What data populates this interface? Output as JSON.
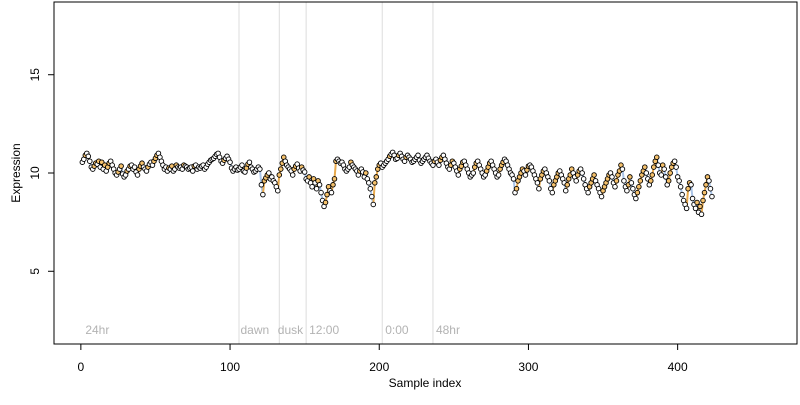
{
  "chart_data": {
    "type": "scatter",
    "xlabel": "Sample index",
    "ylabel": "Expression",
    "xlim": [
      -18,
      480
    ],
    "ylim": [
      1.3,
      18.7
    ],
    "x_ticks": [
      0,
      100,
      200,
      300,
      400
    ],
    "y_ticks": [
      5,
      10,
      15
    ],
    "grid": false,
    "legend": "none",
    "point_fill": "#ffffff",
    "point_stroke": "#000000",
    "highlight_fill": "#f5c16c",
    "segment_colors": {
      "up": "#e8a94c",
      "down": "#a9c4e8"
    },
    "vlines": {
      "x": [
        106,
        133,
        151,
        202,
        236
      ],
      "color": "#dddddd"
    },
    "annotations": [
      {
        "x": 3,
        "y": 2,
        "text": "24hr"
      },
      {
        "x": 107,
        "y": 2,
        "text": "dawn"
      },
      {
        "x": 132,
        "y": 2,
        "text": "dusk"
      },
      {
        "x": 153,
        "y": 2,
        "text": "12:00"
      },
      {
        "x": 204,
        "y": 2,
        "text": "0:00"
      },
      {
        "x": 238,
        "y": 2,
        "text": "48hr"
      }
    ],
    "series": [
      {
        "x_start": 1,
        "values": [
          10.55,
          10.7,
          10.9,
          11.0,
          10.85,
          10.6,
          10.3,
          10.2,
          10.35,
          10.5,
          10.45,
          10.6,
          10.3,
          10.55,
          10.2,
          10.4,
          10.1,
          10.3,
          10.5,
          10.6,
          10.4,
          10.2,
          10.0,
          9.9,
          10.05,
          10.2,
          10.35,
          9.95,
          9.8,
          9.9,
          10.1,
          10.2,
          10.35,
          10.4,
          10.2,
          10.3,
          10.05,
          9.9,
          10.2,
          10.35,
          10.5,
          10.3,
          10.2,
          10.1,
          10.3,
          10.45,
          10.55,
          10.4,
          10.6,
          10.75,
          10.9,
          11.0,
          10.8,
          10.6,
          10.4,
          10.2,
          10.3,
          10.1,
          10.25,
          10.2,
          10.35,
          10.1,
          10.2,
          10.4,
          10.3,
          10.25,
          10.3,
          10.2,
          10.4,
          10.35,
          10.3,
          10.2,
          10.25,
          10.3,
          10.1,
          10.35,
          10.4,
          10.2,
          10.3,
          10.25,
          10.35,
          10.4,
          10.2,
          10.3,
          10.45,
          10.55,
          10.65,
          10.7,
          10.75,
          10.85,
          10.95,
          11.0,
          10.8,
          10.6,
          10.5,
          10.65,
          10.75,
          10.85,
          10.7,
          10.55,
          10.25,
          10.1,
          10.2,
          10.3,
          10.15,
          10.2,
          10.3,
          10.4,
          10.1,
          10.05,
          10.25,
          10.45,
          10.55,
          10.3,
          10.2,
          10.05,
          10.1,
          10.2,
          10.3,
          10.2,
          9.4,
          8.9,
          9.6,
          9.75,
          9.9,
          10.0,
          9.7,
          9.8,
          9.6,
          9.5,
          9.3,
          9.1,
          9.9,
          10.2,
          10.5,
          10.8,
          10.6,
          10.4,
          10.3,
          10.2,
          10.1,
          9.9,
          10.2,
          10.35,
          10.45,
          10.25,
          10.1,
          10.3,
          10.15,
          10.05,
          9.7,
          9.6,
          9.8,
          9.5,
          9.3,
          9.7,
          9.5,
          9.2,
          9.6,
          9.4,
          9.0,
          8.6,
          8.3,
          8.5,
          8.9,
          9.3,
          9.1,
          9.0,
          9.4,
          9.7,
          10.6,
          10.7,
          10.6,
          10.5,
          10.55,
          10.4,
          10.2,
          10.1,
          10.2,
          10.3,
          10.55,
          10.4,
          10.3,
          10.2,
          10.1,
          9.9,
          10.1,
          10.2,
          10.05,
          9.8,
          10.0,
          9.7,
          9.5,
          9.2,
          8.8,
          8.4,
          9.5,
          9.8,
          10.2,
          10.4,
          10.5,
          10.3,
          10.4,
          10.5,
          10.6,
          10.7,
          10.85,
          10.95,
          11.05,
          10.9,
          10.7,
          10.75,
          10.9,
          11.0,
          10.85,
          10.7,
          10.6,
          10.8,
          10.9,
          10.8,
          10.7,
          10.55,
          10.6,
          10.7,
          10.8,
          10.9,
          10.65,
          10.5,
          10.6,
          10.7,
          10.8,
          10.9,
          10.75,
          10.6,
          10.5,
          10.4,
          10.6,
          10.7,
          10.55,
          10.4,
          10.65,
          10.8,
          10.9,
          10.7,
          10.5,
          10.3,
          10.2,
          10.4,
          10.6,
          10.5,
          10.3,
          10.1,
          9.9,
          10.2,
          10.35,
          10.55,
          10.6,
          10.4,
          10.2,
          10.0,
          9.8,
          9.9,
          10.0,
          10.3,
          10.5,
          10.6,
          10.4,
          10.2,
          10.0,
          9.8,
          9.9,
          10.1,
          10.3,
          10.5,
          10.6,
          10.4,
          10.2,
          10.0,
          9.8,
          9.9,
          10.2,
          10.4,
          10.55,
          10.7,
          10.6,
          10.4,
          10.2,
          10.0,
          9.9,
          9.7,
          9.0,
          9.2,
          9.6,
          9.8,
          10.0,
          10.2,
          10.1,
          9.9,
          10.15,
          10.35,
          10.4,
          10.3,
          10.1,
          9.9,
          9.7,
          9.5,
          9.2,
          9.7,
          9.9,
          10.1,
          10.2,
          10.0,
          9.8,
          9.6,
          9.2,
          9.0,
          9.4,
          9.6,
          9.8,
          10.0,
          10.1,
          9.9,
          9.7,
          9.5,
          9.1,
          9.4,
          9.7,
          9.9,
          10.2,
          10.0,
          9.8,
          9.6,
          9.9,
          10.1,
          10.2,
          10.0,
          9.7,
          9.4,
          9.2,
          9.0,
          9.3,
          9.5,
          9.7,
          9.9,
          9.6,
          9.4,
          9.2,
          9.0,
          8.8,
          9.1,
          9.3,
          9.5,
          9.7,
          9.9,
          10.0,
          9.8,
          9.5,
          9.3,
          9.6,
          9.9,
          10.1,
          10.4,
          10.2,
          9.6,
          9.3,
          9.1,
          9.4,
          9.8,
          9.5,
          9.2,
          8.9,
          8.7,
          9.0,
          9.3,
          9.6,
          9.9,
          10.1,
          10.3,
          10.0,
          9.7,
          9.4,
          9.6,
          9.9,
          10.3,
          10.6,
          10.8,
          10.4,
          10.0,
          9.9,
          10.4,
          10.2,
          9.8,
          9.4,
          9.6,
          10.0,
          10.3,
          10.5,
          10.6,
          10.3,
          9.8,
          9.6,
          9.3,
          8.9,
          8.6,
          8.4,
          8.2,
          9.2,
          9.5,
          9.4,
          8.7,
          8.4,
          8.2,
          8.5,
          8.0,
          8.3,
          7.9,
          8.6,
          9.0,
          9.4,
          9.8,
          9.6,
          9.2,
          8.8
        ]
      }
    ]
  }
}
